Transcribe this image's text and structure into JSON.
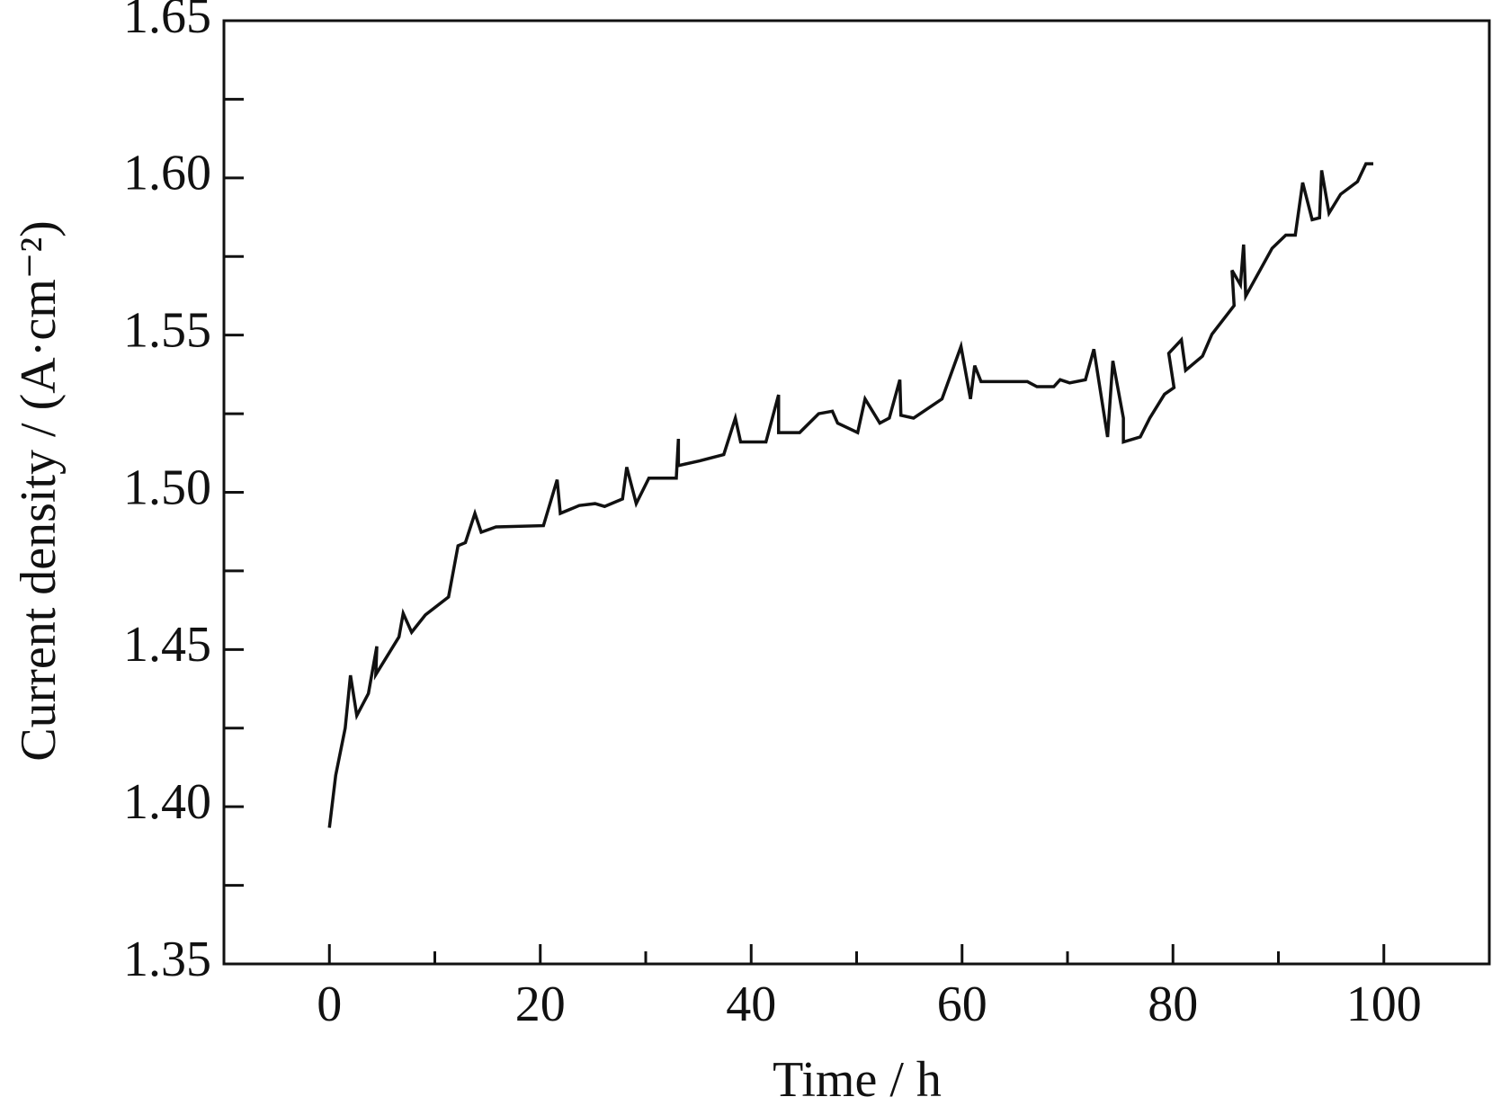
{
  "chart_data": {
    "type": "line",
    "x_label": "Time  / h",
    "y_label": "Current density / (A·cm⁻²)",
    "xlim": [
      -10,
      110
    ],
    "xticks": [
      0,
      20,
      40,
      60,
      80,
      100
    ],
    "x_minor_ticks": [
      10,
      30,
      50,
      70,
      90
    ],
    "ylim": [
      1.35,
      1.65
    ],
    "yticks": [
      1.35,
      {
        "value": 1.4,
        "label": "1.40"
      },
      1.45,
      {
        "value": 1.5,
        "label": "1.50"
      },
      1.55,
      {
        "value": 1.6,
        "label": "1.60"
      },
      1.65
    ],
    "y_minor_ticks": [
      1.375,
      1.425,
      1.475,
      1.525,
      1.575,
      1.625
    ],
    "grid": false,
    "series": [
      {
        "name": "Current density",
        "color": "#111111",
        "x": [
          0,
          0.6,
          1.5,
          2.0,
          2.6,
          3.7,
          4.5,
          4.4,
          6.6,
          7.0,
          7.8,
          9.1,
          11.3,
          12.2,
          12.9,
          13.8,
          14.4,
          15.8,
          20.3,
          21.6,
          21.9,
          23.7,
          25.2,
          26.1,
          27.8,
          28.2,
          29.1,
          30.3,
          32.9,
          33.1,
          33.1,
          35.1,
          37.4,
          38.5,
          39.0,
          41.4,
          42.6,
          42.6,
          44.6,
          46.4,
          47.7,
          48.2,
          50.1,
          50.8,
          52.2,
          53.1,
          54.1,
          54.2,
          55.4,
          58.1,
          59.9,
          60.8,
          61.2,
          61.8,
          66.2,
          67.1,
          68.7,
          69.3,
          70.2,
          71.7,
          72.5,
          73.8,
          74.3,
          75.3,
          75.3,
          76.9,
          77.8,
          79.2,
          80.1,
          79.6,
          80.8,
          81.2,
          82.8,
          83.7,
          85.8,
          85.6,
          86.4,
          86.7,
          86.9,
          89.4,
          90.7,
          91.6,
          92.3,
          93.2,
          93.9,
          94.1,
          94.8,
          95.9,
          97.5,
          98.3,
          99.0
        ],
        "values": [
          1.3933,
          1.41,
          1.425,
          1.4418,
          1.429,
          1.436,
          1.451,
          1.442,
          1.454,
          1.4615,
          1.4555,
          1.461,
          1.4667,
          1.483,
          1.484,
          1.4933,
          1.4873,
          1.489,
          1.4894,
          1.504,
          1.4933,
          1.4958,
          1.4964,
          1.4955,
          1.4979,
          1.508,
          1.4964,
          1.5045,
          1.5045,
          1.517,
          1.5085,
          1.51,
          1.512,
          1.5236,
          1.516,
          1.516,
          1.531,
          1.519,
          1.519,
          1.525,
          1.5258,
          1.522,
          1.519,
          1.5297,
          1.522,
          1.5236,
          1.5358,
          1.5245,
          1.5236,
          1.5297,
          1.5464,
          1.5297,
          1.5403,
          1.5352,
          1.5352,
          1.5336,
          1.5336,
          1.5358,
          1.5348,
          1.5358,
          1.5455,
          1.5176,
          1.5418,
          1.5236,
          1.516,
          1.5176,
          1.5236,
          1.5312,
          1.5333,
          1.5442,
          1.5485,
          1.5388,
          1.5433,
          1.5503,
          1.5594,
          1.5706,
          1.566,
          1.5788,
          1.5624,
          1.5776,
          1.5818,
          1.5818,
          1.5985,
          1.5867,
          1.5873,
          1.6024,
          1.5888,
          1.5948,
          1.5988,
          1.6045,
          1.6045
        ]
      }
    ]
  }
}
